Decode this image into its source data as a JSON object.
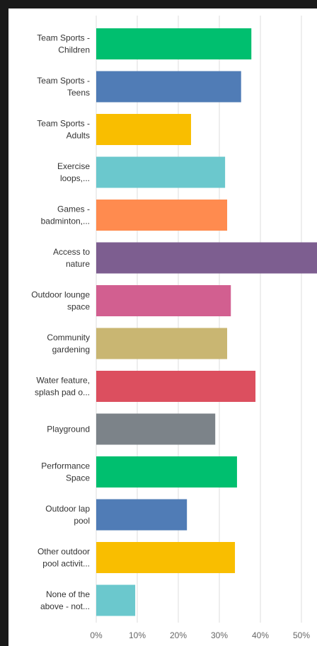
{
  "chart_data": {
    "type": "barh",
    "categories": [
      "Team Sports -\nChildren",
      "Team Sports -\nTeens",
      "Team Sports -\nAdults",
      "Exercise\nloops,...",
      "Games -\nbadminton,...",
      "Access to\nnature",
      "Outdoor lounge\nspace",
      "Community\ngardening",
      "Water feature,\nsplash pad o...",
      "Playground",
      "Performance\nSpace",
      "Outdoor lap\npool",
      "Other outdoor\npool activit...",
      "None of the\nabove - not..."
    ],
    "values": [
      37.8,
      35.3,
      23.1,
      31.4,
      31.9,
      56,
      32.8,
      31.9,
      38.8,
      29.0,
      34.3,
      22.1,
      33.8,
      9.5
    ],
    "colors": [
      "#00bf6f",
      "#507cb6",
      "#f9be00",
      "#6bc8cd",
      "#ff8b4f",
      "#7d5e90",
      "#d25f90",
      "#c9b672",
      "#dc4f5f",
      "#7c8389",
      "#00bf6f",
      "#507cb6",
      "#f9be00",
      "#6bc8cd"
    ],
    "xlim": [
      0,
      53.8
    ],
    "xticks": [
      {
        "value": 0,
        "label": "0%"
      },
      {
        "value": 10,
        "label": "10%"
      },
      {
        "value": 20,
        "label": "20%"
      },
      {
        "value": 30,
        "label": "30%"
      },
      {
        "value": 40,
        "label": "40%"
      },
      {
        "value": 50,
        "label": "50%"
      }
    ],
    "grid": true
  }
}
